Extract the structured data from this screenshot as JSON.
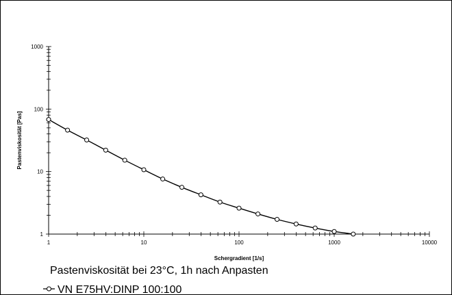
{
  "chart_data": {
    "type": "line",
    "caption": "Pastenviskosität bei 23°C, 1h nach Anpasten",
    "title": "",
    "xlabel": "Schergradient  [1/s]",
    "ylabel": "Pastenviskosität  [Pas]",
    "x_scale": "log",
    "y_scale": "log",
    "xlim": [
      1,
      10000
    ],
    "ylim": [
      1,
      1000
    ],
    "x_ticks": [
      {
        "value": 1,
        "label": "1"
      },
      {
        "value": 10,
        "label": "10"
      },
      {
        "value": 100,
        "label": "100"
      },
      {
        "value": 1000,
        "label": "1000"
      },
      {
        "value": 10000,
        "label": "10000"
      }
    ],
    "y_ticks": [
      {
        "value": 1,
        "label": "1"
      },
      {
        "value": 10,
        "label": "10"
      },
      {
        "value": 100,
        "label": "100"
      },
      {
        "value": 1000,
        "label": "1000"
      }
    ],
    "grid": false,
    "legend_position": "bottom-left",
    "series": [
      {
        "name": "VN E75HV:DINP 100:100",
        "color": "#000000",
        "marker": "open-circle",
        "markers": {
          "x": [
            1,
            1.58,
            2.51,
            3.98,
            6.31,
            10,
            15.8,
            25.1,
            39.8,
            63.1,
            100,
            158,
            251,
            398,
            631,
            1000,
            1585
          ],
          "y": [
            68,
            46,
            32,
            22,
            15.2,
            10.7,
            7.6,
            5.6,
            4.25,
            3.25,
            2.6,
            2.1,
            1.72,
            1.45,
            1.25,
            1.1,
            1.0
          ]
        },
        "curve": {
          "x": [
            1,
            1.58,
            2.51,
            3.98,
            6.31,
            10,
            15.8,
            25.1,
            39.8,
            63.1,
            100,
            158,
            251,
            398,
            631,
            1000,
            1585,
            2200
          ],
          "y": [
            68,
            46,
            32,
            22,
            15.2,
            10.7,
            7.6,
            5.6,
            4.25,
            3.25,
            2.6,
            2.1,
            1.72,
            1.45,
            1.25,
            1.1,
            1.0,
            0.93
          ]
        }
      }
    ]
  }
}
